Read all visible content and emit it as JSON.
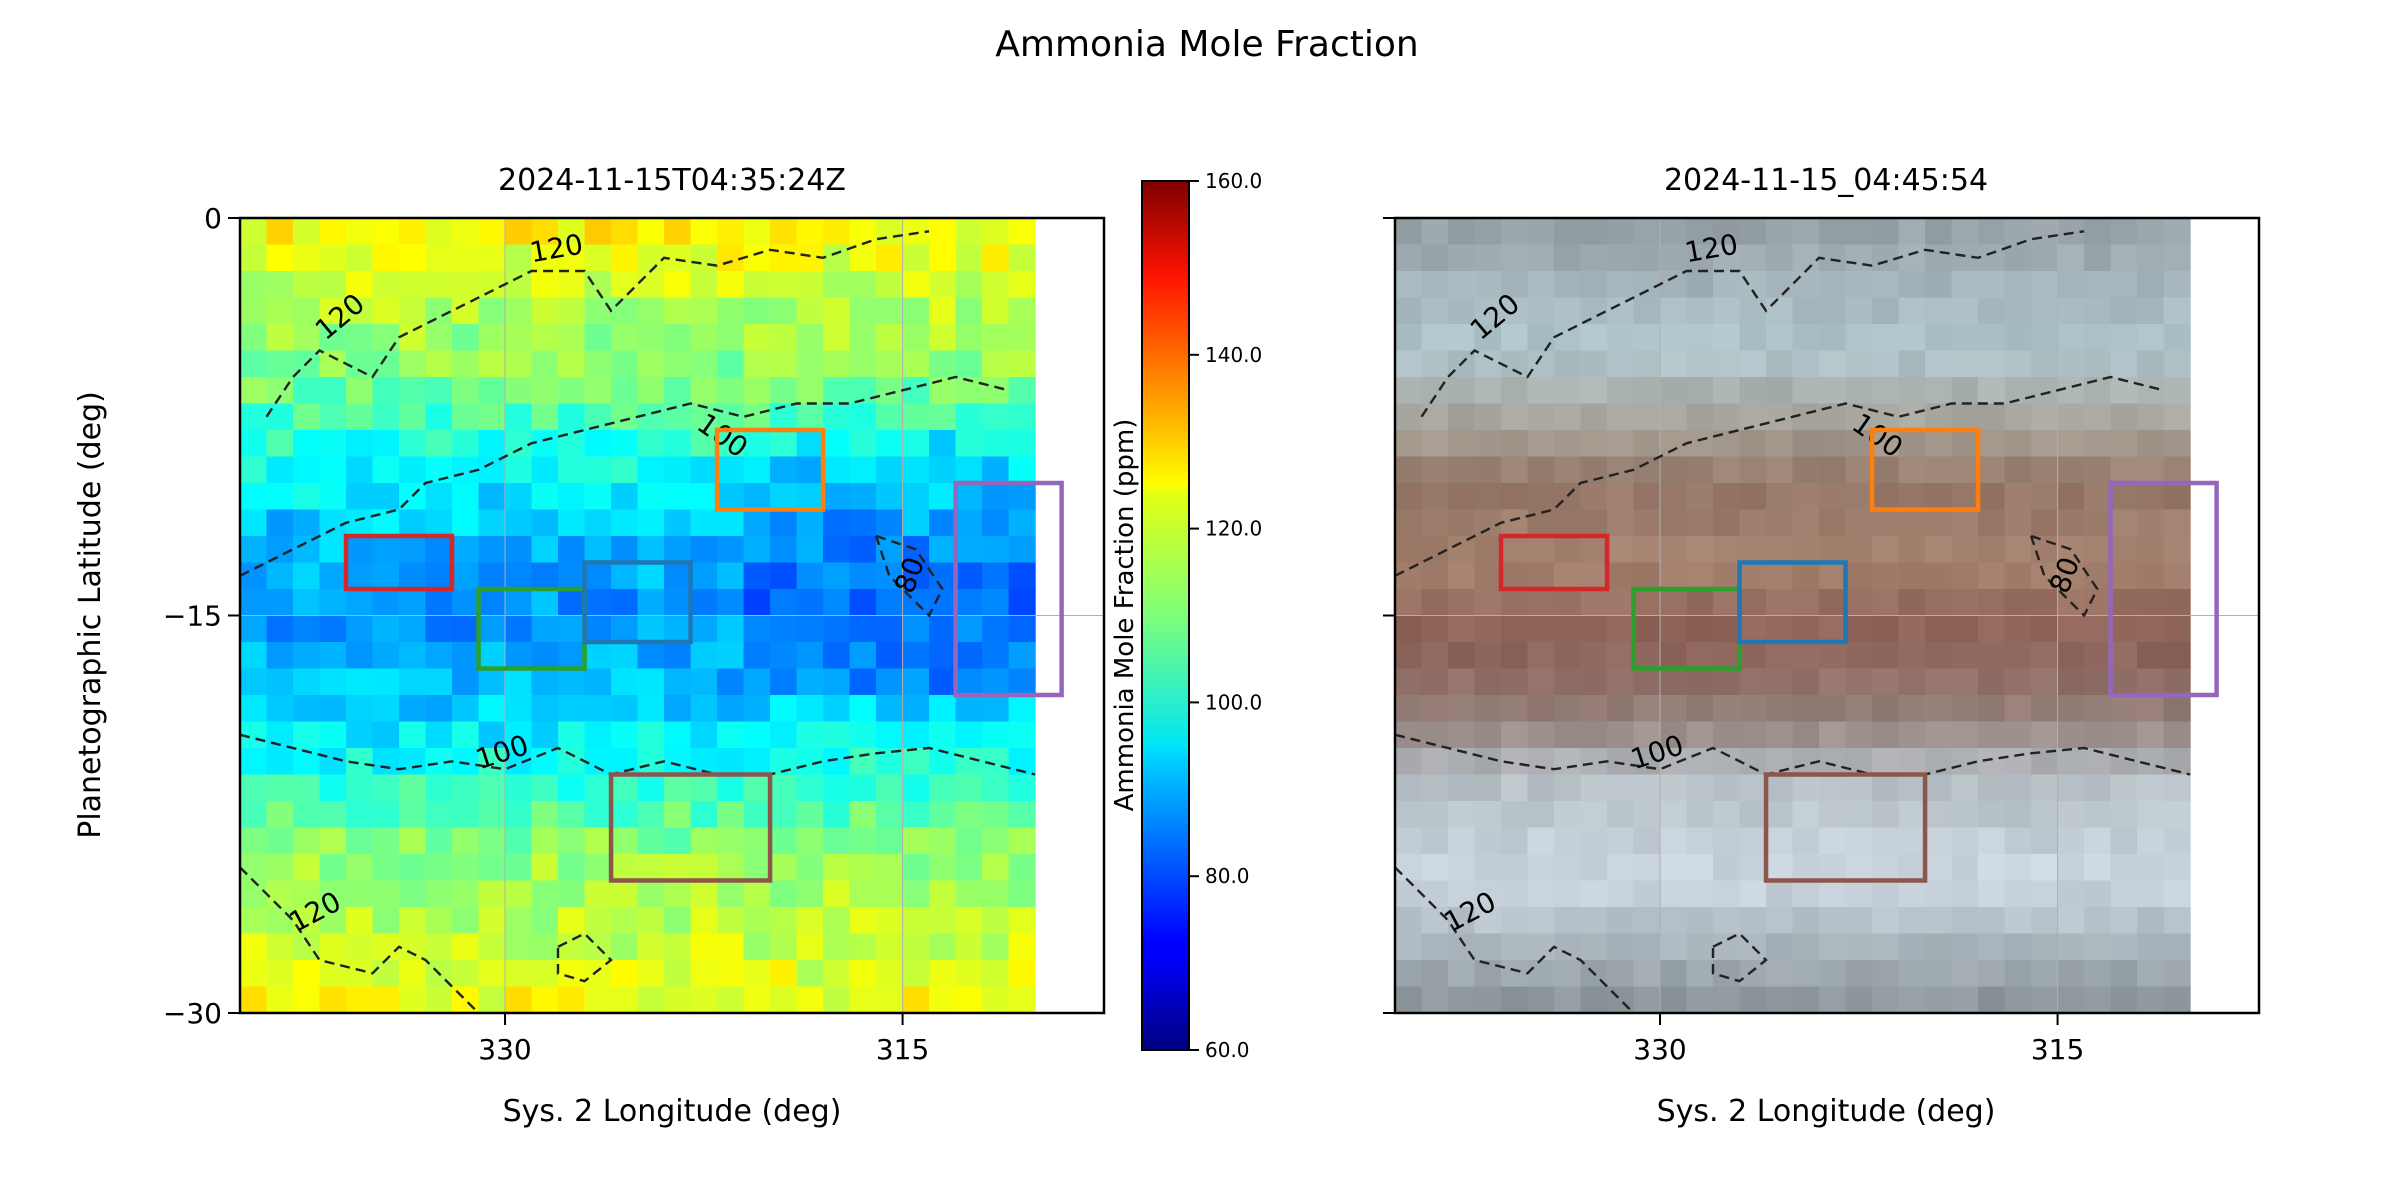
{
  "figure": {
    "title": "Ammonia Mole Fraction"
  },
  "chart_data": [
    {
      "type": "heatmap",
      "title": "2024-11-15T04:35:24Z",
      "xlabel": "Sys. 2 Longitude (deg)",
      "ylabel": "Planetographic Latitude (deg)",
      "xlim": [
        340,
        307.4
      ],
      "ylim": [
        -30,
        0
      ],
      "x_ticks": [
        330,
        315
      ],
      "y_ticks": [
        0,
        -15,
        -30
      ],
      "data_extent_x": [
        340,
        310
      ],
      "grid": true,
      "colormap": "jet",
      "value_units": "ppm",
      "zonal_profile": {
        "latitude": [
          0,
          -3,
          -6,
          -9,
          -12,
          -15,
          -18,
          -21,
          -24,
          -27,
          -30
        ],
        "value": [
          124,
          116,
          110,
          99,
          91,
          87,
          91,
          101,
          112,
          116,
          122
        ]
      },
      "contours": {
        "levels": [
          80,
          100,
          120
        ],
        "labels": [
          "80",
          "100",
          "120"
        ],
        "style": "dashed"
      },
      "boxes": [
        {
          "color": "#d62728",
          "lon": [
            336,
            332
          ],
          "lat": [
            -12,
            -14
          ]
        },
        {
          "color": "#2ca02c",
          "lon": [
            331,
            327
          ],
          "lat": [
            -14,
            -17
          ]
        },
        {
          "color": "#1f77b4",
          "lon": [
            327,
            323
          ],
          "lat": [
            -13,
            -16
          ]
        },
        {
          "color": "#ff7f0e",
          "lon": [
            322,
            318
          ],
          "lat": [
            -8,
            -11
          ]
        },
        {
          "color": "#9467bd",
          "lon": [
            313,
            309
          ],
          "lat": [
            -10,
            -18
          ]
        },
        {
          "color": "#8c564b",
          "lon": [
            326,
            320
          ],
          "lat": [
            -21,
            -25
          ]
        }
      ]
    },
    {
      "type": "heatmap",
      "title": "2024-11-15_04:45:54",
      "xlabel": "Sys. 2 Longitude (deg)",
      "ylabel": "",
      "xlim": [
        340,
        307.4
      ],
      "ylim": [
        -30,
        0
      ],
      "x_ticks": [
        330,
        315
      ],
      "y_ticks": [],
      "grid": true,
      "image": "true-color cloud image",
      "contours": {
        "levels": [
          80,
          100,
          120
        ],
        "labels": [
          "80",
          "100",
          "120"
        ],
        "style": "dashed"
      },
      "boxes": [
        {
          "color": "#d62728",
          "lon": [
            336,
            332
          ],
          "lat": [
            -12,
            -14
          ]
        },
        {
          "color": "#2ca02c",
          "lon": [
            331,
            327
          ],
          "lat": [
            -14,
            -17
          ]
        },
        {
          "color": "#1f77b4",
          "lon": [
            327,
            323
          ],
          "lat": [
            -13,
            -16
          ]
        },
        {
          "color": "#ff7f0e",
          "lon": [
            322,
            318
          ],
          "lat": [
            -8,
            -11
          ]
        },
        {
          "color": "#9467bd",
          "lon": [
            313,
            309
          ],
          "lat": [
            -10,
            -18
          ]
        },
        {
          "color": "#8c564b",
          "lon": [
            326,
            320
          ],
          "lat": [
            -21,
            -25
          ]
        }
      ]
    }
  ],
  "colorbar": {
    "label": "Ammonia Mole Fraction (ppm)",
    "range": [
      60,
      160
    ],
    "tick_values": [
      60,
      80,
      100,
      120,
      140,
      160
    ],
    "tick_labels": [
      "60.0",
      "80.0",
      "100.0",
      "120.0",
      "140.0",
      "160.0"
    ],
    "colormap": "jet"
  }
}
